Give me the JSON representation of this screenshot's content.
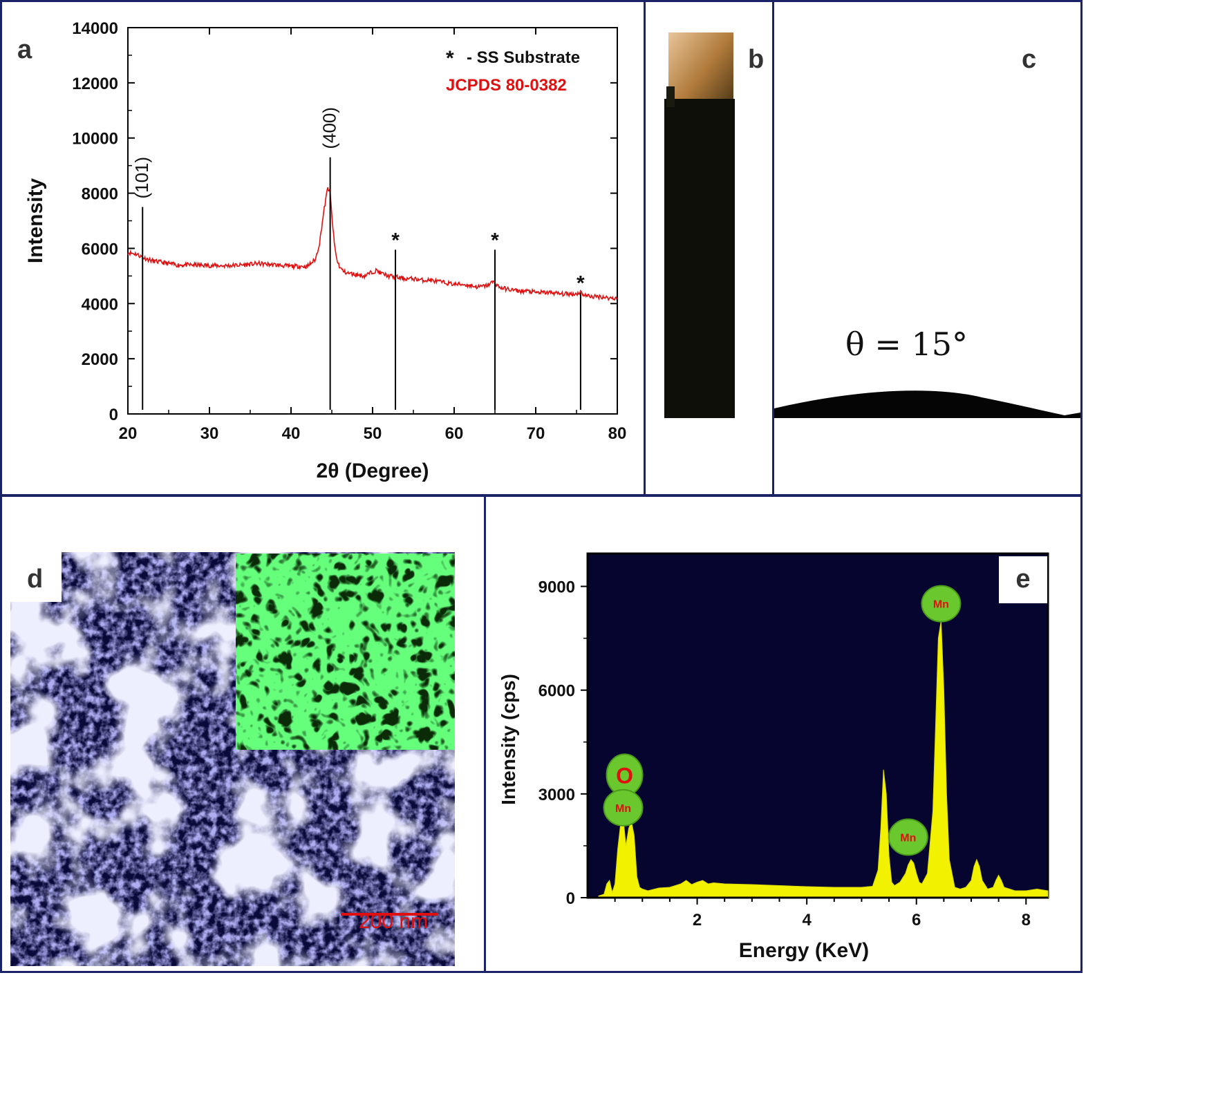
{
  "panels": {
    "a": "a",
    "b": "b",
    "c": "c",
    "d": "d",
    "e": "e"
  },
  "contact_angle_text": "θ = 15°",
  "scale_bar_text": "200 nm",
  "colors": {
    "frame": "#1a2366",
    "xrd_trace": "#e01010",
    "eds_background": "#050530",
    "eds_spectrum": "#f2f200",
    "eds_peak_label_fill": "#6ac72e",
    "eds_peak_label_text": "#e01010",
    "sem_tint": "#6a6ae0",
    "map_green": "#22ff33"
  },
  "chart_data": [
    {
      "id": "a",
      "type": "line",
      "xlabel": "2θ (Degree)",
      "ylabel": "Intensity",
      "xlim": [
        20,
        80
      ],
      "ylim": [
        0,
        14000
      ],
      "xticks": [
        20,
        30,
        40,
        50,
        60,
        70,
        80
      ],
      "yticks": [
        0,
        2000,
        4000,
        6000,
        8000,
        10000,
        12000,
        14000
      ],
      "legend": {
        "marker_text": "*",
        "marker_label": "- SS Substrate",
        "reference": "JCPDS  80-0382"
      },
      "series": [
        {
          "x": [
            20,
            21,
            22,
            23,
            24,
            25,
            26,
            28,
            30,
            32,
            34,
            36,
            38,
            40,
            42,
            43,
            43.5,
            44,
            44.5,
            44.8,
            45,
            45.3,
            45.6,
            46,
            46.5,
            47,
            48,
            49,
            50,
            50.5,
            51,
            52,
            53,
            54,
            55,
            56,
            57,
            58,
            59,
            60,
            61,
            62,
            63,
            64,
            64.7,
            65,
            65.5,
            66,
            67,
            68,
            69,
            70,
            71,
            72,
            73,
            74,
            75,
            75.5,
            76,
            77,
            78,
            79,
            80
          ],
          "y": [
            5850,
            5800,
            5650,
            5550,
            5500,
            5450,
            5400,
            5400,
            5380,
            5370,
            5400,
            5450,
            5400,
            5350,
            5350,
            5600,
            6200,
            7300,
            8200,
            8000,
            7200,
            6200,
            5600,
            5300,
            5150,
            5100,
            5050,
            5000,
            5150,
            5200,
            5100,
            5000,
            4950,
            4900,
            4900,
            4850,
            4850,
            4800,
            4750,
            4700,
            4700,
            4650,
            4600,
            4650,
            4780,
            4750,
            4600,
            4550,
            4500,
            4450,
            4450,
            4400,
            4400,
            4400,
            4350,
            4350,
            4350,
            4420,
            4300,
            4250,
            4250,
            4200,
            4200
          ]
        }
      ],
      "reference_lines": [
        {
          "x": 21.8,
          "y_top": 7500,
          "label": "(101)"
        },
        {
          "x": 44.8,
          "y_top": 9300,
          "label": "(400)"
        },
        {
          "x": 52.8,
          "y_top": 5950,
          "label": "*"
        },
        {
          "x": 65.0,
          "y_top": 5950,
          "label": "*"
        },
        {
          "x": 75.5,
          "y_top": 4400,
          "label": "*"
        }
      ]
    },
    {
      "id": "e",
      "type": "area",
      "xlabel": "Energy (KeV)",
      "ylabel": "Intensity (cps)",
      "xlim": [
        0,
        8.4
      ],
      "ylim": [
        0,
        9000
      ],
      "xticks": [
        2,
        4,
        6,
        8
      ],
      "yticks": [
        0,
        3000,
        6000,
        9000
      ],
      "series": [
        {
          "x": [
            0.2,
            0.3,
            0.35,
            0.4,
            0.45,
            0.5,
            0.55,
            0.6,
            0.65,
            0.7,
            0.75,
            0.8,
            0.85,
            0.9,
            0.95,
            1.0,
            1.1,
            1.3,
            1.5,
            1.7,
            1.8,
            1.9,
            2.0,
            2.1,
            2.2,
            2.3,
            2.5,
            3.0,
            3.5,
            4.0,
            4.5,
            5.0,
            5.2,
            5.3,
            5.35,
            5.4,
            5.45,
            5.5,
            5.55,
            5.6,
            5.7,
            5.8,
            5.85,
            5.9,
            5.95,
            6.0,
            6.05,
            6.1,
            6.2,
            6.3,
            6.35,
            6.4,
            6.45,
            6.5,
            6.55,
            6.6,
            6.7,
            6.8,
            6.9,
            7.0,
            7.05,
            7.1,
            7.15,
            7.2,
            7.3,
            7.4,
            7.45,
            7.5,
            7.55,
            7.6,
            7.8,
            8.0,
            8.2,
            8.4
          ],
          "y": [
            50,
            100,
            400,
            500,
            150,
            400,
            1400,
            2100,
            2300,
            1500,
            2000,
            2200,
            1800,
            600,
            300,
            250,
            200,
            280,
            300,
            400,
            500,
            380,
            450,
            500,
            400,
            430,
            400,
            380,
            350,
            320,
            300,
            300,
            330,
            800,
            2000,
            3700,
            3000,
            1200,
            450,
            350,
            450,
            700,
            950,
            1100,
            1000,
            700,
            450,
            400,
            700,
            2500,
            5000,
            7500,
            8000,
            6000,
            3000,
            1100,
            300,
            250,
            300,
            500,
            900,
            1100,
            900,
            500,
            250,
            300,
            500,
            650,
            500,
            300,
            200,
            200,
            250,
            200
          ]
        }
      ],
      "peak_labels": [
        {
          "element": "O",
          "energy": 0.65,
          "intensity": 3550
        },
        {
          "element": "Mn",
          "energy": 0.65,
          "intensity": 2600
        },
        {
          "element": "Mn",
          "energy": 5.85,
          "intensity": 1750
        },
        {
          "element": "Mn",
          "energy": 6.45,
          "intensity": 8500
        }
      ]
    }
  ]
}
